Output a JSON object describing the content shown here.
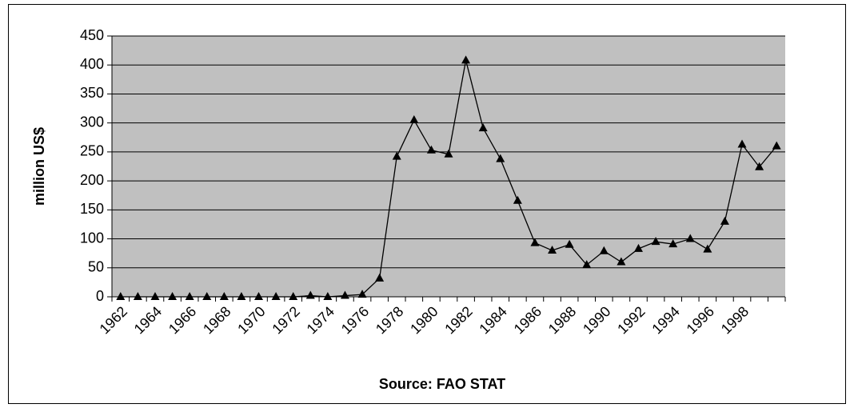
{
  "chart_data": {
    "type": "line",
    "y_label": "million US$",
    "x_label": "Source: FAO STAT",
    "categories": [
      "1962",
      null,
      "1964",
      null,
      "1966",
      null,
      "1968",
      null,
      "1970",
      null,
      "1972",
      null,
      "1974",
      null,
      "1976",
      null,
      "1978",
      null,
      "1980",
      null,
      "1982",
      null,
      "1984",
      null,
      "1986",
      null,
      "1988",
      null,
      "1990",
      null,
      "1992",
      null,
      "1994",
      null,
      "1996",
      null,
      "1998",
      null,
      null
    ],
    "values": [
      0,
      0,
      0,
      0,
      0,
      0,
      0,
      0,
      0,
      0,
      0,
      2,
      0,
      2,
      4,
      32,
      242,
      305,
      253,
      246,
      408,
      291,
      238,
      166,
      93,
      80,
      90,
      55,
      79,
      60,
      83,
      95,
      91,
      100,
      82,
      130,
      263,
      224,
      260
    ],
    "color": "#000000",
    "ylim": [
      0,
      450
    ],
    "yticks": [
      0,
      50,
      100,
      150,
      200,
      250,
      300,
      350,
      400,
      450
    ],
    "grid": true
  }
}
